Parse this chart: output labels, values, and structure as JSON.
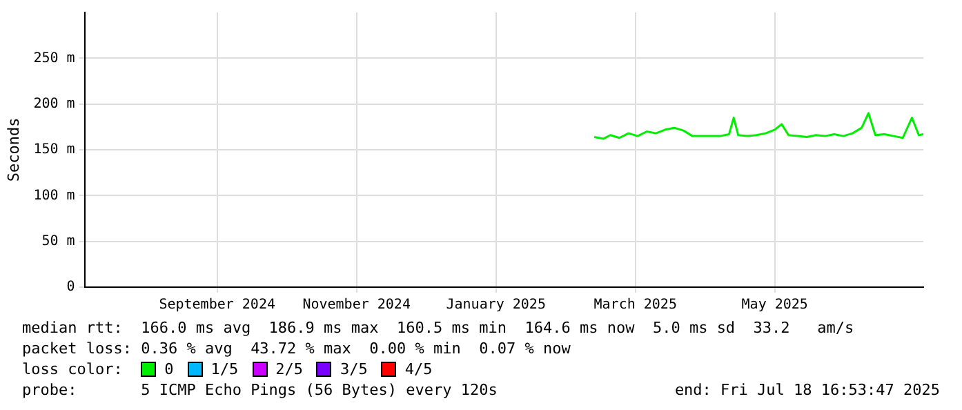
{
  "chart_data": {
    "type": "line",
    "ylabel": "Seconds",
    "legend_title": "loss color:",
    "legend": "bottom",
    "grid": true,
    "marker": "none",
    "line_style": "solid",
    "x": [
      "2025-02-24",
      "2025-02-28",
      "2025-03-03",
      "2025-03-07",
      "2025-03-11",
      "2025-03-15",
      "2025-03-19",
      "2025-03-23",
      "2025-03-27",
      "2025-03-31",
      "2025-04-04",
      "2025-04-08",
      "2025-04-12",
      "2025-04-16",
      "2025-04-20",
      "2025-04-24",
      "2025-04-26",
      "2025-04-28",
      "2025-05-02",
      "2025-05-06",
      "2025-05-10",
      "2025-05-14",
      "2025-05-17",
      "2025-05-20",
      "2025-05-24",
      "2025-05-28",
      "2025-06-01",
      "2025-06-05",
      "2025-06-09",
      "2025-06-13",
      "2025-06-17",
      "2025-06-21",
      "2025-06-24",
      "2025-06-27",
      "2025-07-01",
      "2025-07-05",
      "2025-07-09",
      "2025-07-13",
      "2025-07-16",
      "2025-07-18"
    ],
    "series": [
      {
        "name": "0",
        "color": "#00ee00",
        "values": [
          164,
          162,
          166,
          163,
          168,
          165,
          170,
          168,
          172,
          174,
          171,
          165,
          165,
          165,
          165,
          167,
          185,
          166,
          165,
          166,
          168,
          172,
          178,
          166,
          165,
          164,
          166,
          165,
          167,
          165,
          168,
          174,
          190,
          166,
          167,
          165,
          163,
          185,
          166,
          167
        ]
      },
      {
        "name": "1/5",
        "color": "#00b8ff",
        "values": [
          null,
          null,
          null,
          null,
          null,
          null,
          null,
          null,
          null,
          null,
          null,
          null,
          null,
          null,
          null,
          null,
          null,
          null,
          null,
          null,
          null,
          null,
          null,
          null,
          null,
          null,
          null,
          null,
          null,
          null,
          null,
          null,
          null,
          null,
          null,
          null,
          null,
          null,
          null,
          null
        ]
      },
      {
        "name": "2/5",
        "color": "#cc00ff",
        "values": [
          null,
          null,
          null,
          null,
          null,
          null,
          null,
          null,
          null,
          null,
          null,
          null,
          null,
          null,
          null,
          null,
          null,
          null,
          null,
          null,
          null,
          null,
          null,
          null,
          null,
          null,
          null,
          null,
          null,
          null,
          null,
          null,
          null,
          null,
          null,
          null,
          null,
          null,
          null,
          null
        ]
      },
      {
        "name": "3/5",
        "color": "#7a00ff",
        "values": [
          null,
          null,
          null,
          null,
          null,
          null,
          null,
          null,
          null,
          null,
          null,
          null,
          null,
          null,
          null,
          null,
          null,
          null,
          null,
          null,
          null,
          null,
          null,
          null,
          null,
          null,
          null,
          null,
          null,
          null,
          null,
          null,
          null,
          null,
          null,
          null,
          null,
          null,
          null,
          null
        ]
      },
      {
        "name": "4/5",
        "color": "#ff0000",
        "values": [
          null,
          null,
          null,
          null,
          null,
          null,
          null,
          null,
          null,
          null,
          null,
          null,
          null,
          null,
          null,
          null,
          null,
          null,
          null,
          null,
          null,
          null,
          null,
          null,
          null,
          null,
          null,
          null,
          null,
          null,
          null,
          null,
          null,
          null,
          null,
          null,
          null,
          null,
          null,
          null
        ]
      }
    ],
    "xlim": [
      "2024-07-16",
      "2025-07-18"
    ],
    "xticks": [
      {
        "value": "2024-09-12",
        "label": "September 2024"
      },
      {
        "value": "2024-11-12",
        "label": "November 2024"
      },
      {
        "value": "2025-01-12",
        "label": "January 2025"
      },
      {
        "value": "2025-03-14",
        "label": "March 2025"
      },
      {
        "value": "2025-05-14",
        "label": "May 2025"
      }
    ],
    "ylim": [
      0,
      300
    ],
    "yticks": [
      0,
      {
        "value": 50,
        "label": "50 m"
      },
      {
        "value": 100,
        "label": "100 m"
      },
      {
        "value": 150,
        "label": "150 m"
      },
      {
        "value": 200,
        "label": "200 m"
      },
      {
        "value": 250,
        "label": "250 m"
      }
    ],
    "annotations": [
      "median rtt:  166.0 ms avg  186.9 ms max  160.5 ms min  164.6 ms now  5.0 ms sd  33.2   am/s",
      "packet loss: 0.36 % avg  43.72 % max  0.00 % min  0.07 % now",
      "probe:       5 ICMP Echo Pings (56 Bytes) every 120s",
      "end: Fri Jul 18 16:53:47 2025"
    ]
  }
}
